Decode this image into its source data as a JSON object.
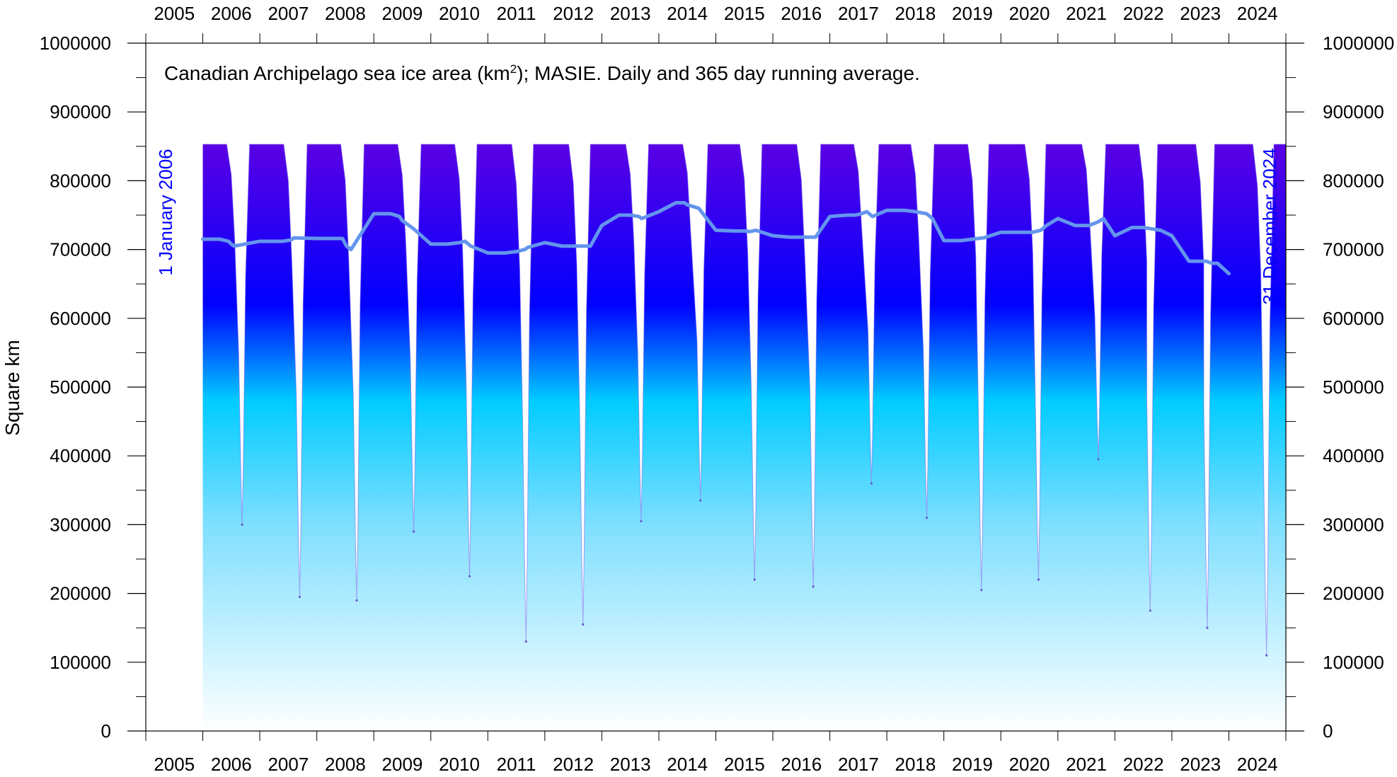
{
  "chart_data": {
    "type": "area",
    "title": "Canadian Archipelago sea ice area (km²); MASIE. Daily and 365 day running average.",
    "title_main": "Canadian Archipelago sea ice area (km",
    "title_sup": "2",
    "title_rest": "); MASIE. Daily and 365 day running average.",
    "ylabel": "Square km",
    "xlabel": "",
    "xlim": [
      2005,
      2025
    ],
    "ylim": [
      0,
      1000000
    ],
    "x_ticks": [
      "2005",
      "2006",
      "2007",
      "2008",
      "2009",
      "2010",
      "2011",
      "2012",
      "2013",
      "2014",
      "2015",
      "2016",
      "2017",
      "2018",
      "2019",
      "2020",
      "2021",
      "2022",
      "2023",
      "2024"
    ],
    "y_ticks": [
      "0",
      "100000",
      "200000",
      "300000",
      "400000",
      "500000",
      "600000",
      "700000",
      "800000",
      "900000",
      "1000000"
    ],
    "start_note": "1 January 2006",
    "end_note": "31 December 2024",
    "grid": false,
    "colors": {
      "daily_gradient_top": "#9400d3",
      "daily_gradient_mid": "#0000ff",
      "daily_gradient_low": "#00ccff",
      "daily_gradient_bottom": "#ffffff",
      "running_average": "#6495ed",
      "note_text": "#0000ff"
    },
    "series": [
      {
        "style": "daily",
        "annual_max": 853000,
        "minima": [
          {
            "x": 2006.69,
            "y": 300000
          },
          {
            "x": 2007.7,
            "y": 195000
          },
          {
            "x": 2008.7,
            "y": 190000
          },
          {
            "x": 2009.7,
            "y": 290000
          },
          {
            "x": 2010.68,
            "y": 225000
          },
          {
            "x": 2011.67,
            "y": 130000
          },
          {
            "x": 2012.67,
            "y": 155000
          },
          {
            "x": 2013.69,
            "y": 305000
          },
          {
            "x": 2014.73,
            "y": 335000
          },
          {
            "x": 2015.68,
            "y": 220000
          },
          {
            "x": 2016.71,
            "y": 210000
          },
          {
            "x": 2017.73,
            "y": 360000
          },
          {
            "x": 2018.7,
            "y": 310000
          },
          {
            "x": 2019.66,
            "y": 205000
          },
          {
            "x": 2020.66,
            "y": 220000
          },
          {
            "x": 2021.71,
            "y": 395000
          },
          {
            "x": 2022.62,
            "y": 175000
          },
          {
            "x": 2023.62,
            "y": 150000
          },
          {
            "x": 2024.66,
            "y": 110000
          }
        ]
      },
      {
        "style": "running-average",
        "x": [
          2006.0,
          2006.3,
          2006.45,
          2006.5,
          2006.55,
          2007.0,
          2007.2,
          2007.4,
          2007.55,
          2007.6,
          2008.0,
          2008.3,
          2008.4,
          2008.45,
          2008.52,
          2008.6,
          2009.0,
          2009.3,
          2009.45,
          2009.5,
          2009.7,
          2010.0,
          2010.3,
          2010.5,
          2010.6,
          2010.7,
          2011.0,
          2011.3,
          2011.5,
          2011.65,
          2011.7,
          2012.0,
          2012.3,
          2012.5,
          2012.6,
          2012.8,
          2013.0,
          2013.3,
          2013.5,
          2013.65,
          2013.7,
          2014.0,
          2014.3,
          2014.45,
          2014.5,
          2014.7,
          2015.0,
          2015.3,
          2015.5,
          2015.6,
          2015.7,
          2016.0,
          2016.3,
          2016.5,
          2016.65,
          2016.75,
          2017.0,
          2017.3,
          2017.45,
          2017.55,
          2017.65,
          2017.75,
          2018.0,
          2018.3,
          2018.5,
          2018.7,
          2018.8,
          2019.0,
          2019.3,
          2019.5,
          2019.7,
          2020.0,
          2020.3,
          2020.45,
          2020.55,
          2020.7,
          2020.8,
          2021.0,
          2021.3,
          2021.45,
          2021.55,
          2021.7,
          2021.8,
          2022.0,
          2022.3,
          2022.5,
          2022.65,
          2022.8,
          2023.0,
          2023.3,
          2023.5,
          2023.6,
          2023.7,
          2023.8,
          2024.0
        ],
        "y": [
          715000,
          715000,
          712000,
          708000,
          705000,
          712000,
          712000,
          712000,
          714000,
          717000,
          716000,
          716000,
          716000,
          716000,
          705000,
          700000,
          752000,
          752000,
          748000,
          742000,
          730000,
          708000,
          708000,
          710000,
          712000,
          705000,
          695000,
          695000,
          697000,
          700000,
          703000,
          710000,
          705000,
          705000,
          705000,
          705000,
          735000,
          750000,
          750000,
          748000,
          745000,
          755000,
          768000,
          768000,
          765000,
          760000,
          728000,
          727000,
          727000,
          726000,
          728000,
          720000,
          718000,
          718000,
          718000,
          718000,
          748000,
          750000,
          750000,
          752000,
          755000,
          748000,
          757000,
          757000,
          755000,
          752000,
          745000,
          713000,
          713000,
          715000,
          717000,
          725000,
          725000,
          725000,
          725000,
          728000,
          735000,
          745000,
          735000,
          735000,
          735000,
          740000,
          745000,
          720000,
          732000,
          732000,
          730000,
          728000,
          720000,
          683000,
          683000,
          683000,
          680000,
          680000,
          665000
        ]
      }
    ]
  }
}
